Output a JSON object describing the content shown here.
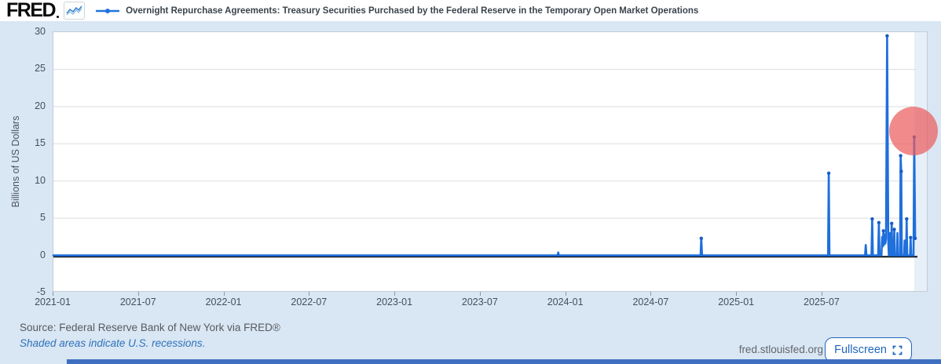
{
  "header": {
    "logo": "FRED",
    "legend_label": "Overnight Repurchase Agreements: Treasury Securities Purchased by the Federal Reserve in the Temporary Open Market Operations"
  },
  "footer": {
    "source": "Source: Federal Reserve Bank of New York via FRED®",
    "recession_note": "Shaded areas indicate U.S. recessions.",
    "site": "fred.stlouisfed.org",
    "fullscreen_label": "Fullscreen"
  },
  "colors": {
    "page_bg": "#d9e6f3",
    "series_blue": "#1f6fdc",
    "marker_blue": "#1a5cc4",
    "zero_line": "#111111",
    "grid": "#d9dde1",
    "highlight_red": "rgba(235,90,90,0.70)",
    "link_blue": "#2f72bb",
    "button_blue": "#2066c0",
    "bottom_bar_blue": "#3e6fc1"
  },
  "chart_data": {
    "type": "line",
    "title": "Overnight Repurchase Agreements: Treasury Securities Purchased by the Federal Reserve in the Temporary Open Market Operations",
    "xlabel": "",
    "ylabel": "Billions of US Dollars",
    "ylim": [
      -5,
      30
    ],
    "yticks": [
      30,
      25,
      20,
      15,
      10,
      5,
      0,
      -5
    ],
    "gridlines": [
      25,
      20,
      15,
      10,
      5
    ],
    "xticks": {
      "labels": [
        "2021-01",
        "2021-07",
        "2022-01",
        "2022-07",
        "2023-01",
        "2023-07",
        "2024-01",
        "2024-07",
        "2025-01",
        "2025-07"
      ],
      "months": [
        0,
        6,
        12,
        18,
        24,
        30,
        36,
        42,
        48,
        54
      ]
    },
    "x_span_months": 61.45,
    "legend_position": "top",
    "grid": true,
    "baseline_value": 0,
    "points": [
      [
        0,
        0
      ],
      [
        35.4,
        0
      ],
      [
        35.45,
        0.4
      ],
      [
        35.5,
        0
      ],
      [
        45.45,
        0
      ],
      [
        45.5,
        2.3
      ],
      [
        45.55,
        0
      ],
      [
        54.4,
        0
      ],
      [
        54.45,
        11.05
      ],
      [
        54.5,
        0
      ],
      [
        57.0,
        0
      ],
      [
        57.05,
        1.4
      ],
      [
        57.1,
        0
      ],
      [
        57.45,
        0
      ],
      [
        57.5,
        4.9
      ],
      [
        57.55,
        0
      ],
      [
        57.92,
        0
      ],
      [
        57.97,
        4.4
      ],
      [
        58.02,
        0
      ],
      [
        58.15,
        0
      ],
      [
        58.2,
        2.5
      ],
      [
        58.24,
        1.2
      ],
      [
        58.29,
        3.3
      ],
      [
        58.33,
        1.4
      ],
      [
        58.38,
        2.8
      ],
      [
        58.42,
        1.6
      ],
      [
        58.47,
        2.2
      ],
      [
        58.55,
        29.5
      ],
      [
        58.63,
        1.8
      ],
      [
        58.67,
        0
      ],
      [
        58.72,
        0
      ],
      [
        58.76,
        3.0
      ],
      [
        58.8,
        0
      ],
      [
        58.83,
        0
      ],
      [
        58.87,
        4.3
      ],
      [
        58.91,
        0
      ],
      [
        59.01,
        0
      ],
      [
        59.05,
        3.5
      ],
      [
        59.09,
        0
      ],
      [
        59.23,
        0
      ],
      [
        59.27,
        3.0
      ],
      [
        59.31,
        0
      ],
      [
        59.46,
        0
      ],
      [
        59.5,
        13.4
      ],
      [
        59.54,
        11.3
      ],
      [
        59.58,
        0
      ],
      [
        59.74,
        0
      ],
      [
        59.78,
        2.0
      ],
      [
        59.82,
        0
      ],
      [
        59.88,
        0
      ],
      [
        59.92,
        4.9
      ],
      [
        59.96,
        0
      ],
      [
        60.16,
        0
      ],
      [
        60.2,
        2.4
      ],
      [
        60.24,
        0
      ],
      [
        60.4,
        0
      ],
      [
        60.45,
        15.9
      ],
      [
        60.52,
        2.3
      ]
    ],
    "markers": [
      [
        45.5,
        2.3
      ],
      [
        54.45,
        11.05
      ],
      [
        57.5,
        4.9
      ],
      [
        57.97,
        4.4
      ],
      [
        58.29,
        3.3
      ],
      [
        58.55,
        29.5
      ],
      [
        58.87,
        4.3
      ],
      [
        59.05,
        3.5
      ],
      [
        59.5,
        13.4
      ],
      [
        59.54,
        11.3
      ],
      [
        59.92,
        4.9
      ],
      [
        60.2,
        2.4
      ],
      [
        60.45,
        15.9
      ],
      [
        60.52,
        2.3
      ]
    ],
    "highlight": {
      "x_month": 60.45,
      "value_center": 16.6,
      "radius_px": 31
    }
  }
}
